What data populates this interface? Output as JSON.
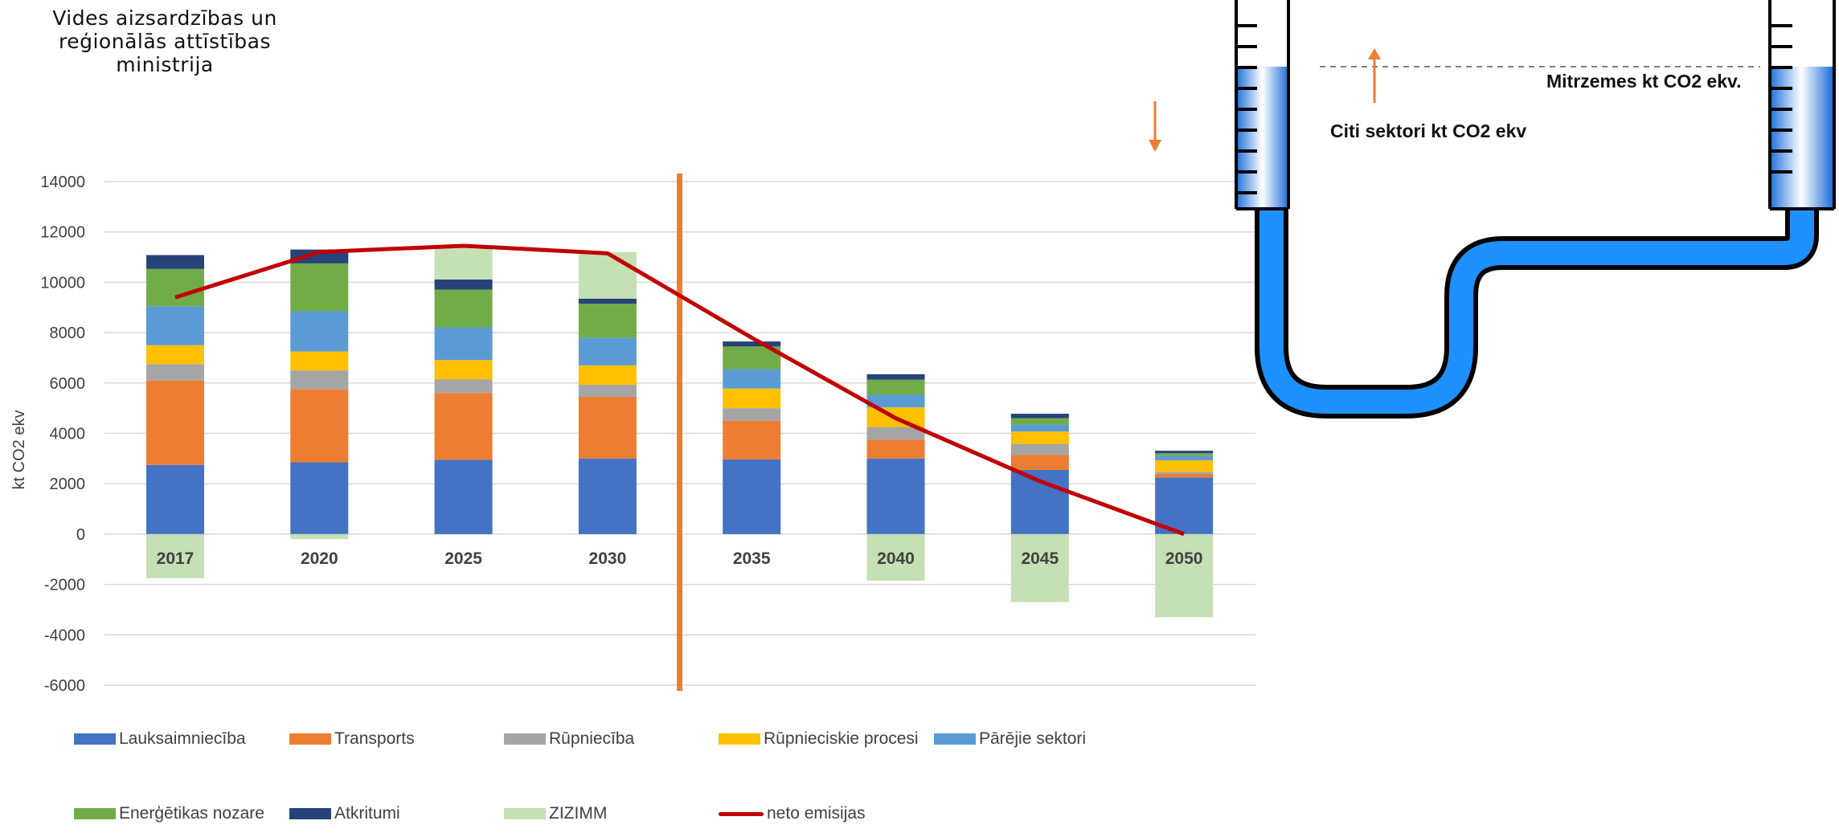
{
  "header": {
    "ministry_lines": [
      "Vides aizsardzības un",
      "reģionālās attīstības",
      "ministrija"
    ]
  },
  "manometer": {
    "left_label": "Citi sektori kt CO2 ekv",
    "right_label": "Mitrzemes kt CO2 ekv.",
    "tube_color": "#1e90ff",
    "arrow_color": "#ed7d31"
  },
  "chart_data": {
    "type": "bar",
    "stacked": true,
    "ylabel": "kt CO2 ekv",
    "ylim": [
      -6000,
      14000
    ],
    "yticks": [
      -6000,
      -4000,
      -2000,
      0,
      2000,
      4000,
      6000,
      8000,
      10000,
      12000,
      14000
    ],
    "grid": true,
    "legend_position": "bottom",
    "categories": [
      "2017",
      "2020",
      "2025",
      "2030",
      "2035",
      "2040",
      "2045",
      "2050"
    ],
    "series": [
      {
        "name": "Lauksaimniecība",
        "color": "#4472c4",
        "values": [
          2750,
          2850,
          2950,
          3000,
          2970,
          3000,
          2550,
          2250
        ]
      },
      {
        "name": "Transports",
        "color": "#ed7d31",
        "values": [
          3350,
          2900,
          2650,
          2450,
          1530,
          750,
          600,
          150
        ]
      },
      {
        "name": "Rūpniecība",
        "color": "#a5a5a5",
        "values": [
          650,
          750,
          550,
          480,
          500,
          500,
          420,
          80
        ]
      },
      {
        "name": "Rūpnieciskie procesi",
        "color": "#ffc000",
        "values": [
          750,
          750,
          760,
          770,
          780,
          780,
          500,
          450
        ]
      },
      {
        "name": "Pārējie sektori",
        "color": "#5b9bd5",
        "values": [
          1550,
          1600,
          1300,
          1100,
          770,
          500,
          280,
          180
        ]
      },
      {
        "name": "Enerģētikas nozare",
        "color": "#70ad47",
        "values": [
          1480,
          1900,
          1500,
          1350,
          900,
          600,
          250,
          100
        ]
      },
      {
        "name": "Atkritumi",
        "color": "#264478",
        "values": [
          550,
          550,
          400,
          200,
          200,
          220,
          180,
          100
        ]
      },
      {
        "name": "ZIZIMM",
        "color": "#c5e0b4",
        "values": [
          -1750,
          -200,
          1300,
          1850,
          0,
          -1850,
          -2700,
          -3300
        ]
      }
    ],
    "line": {
      "name": "neto emisijas",
      "color": "#c00000",
      "values": [
        9400,
        11200,
        11450,
        11150,
        7800,
        4600,
        2100,
        0
      ]
    },
    "vertical_marker_after": "2030",
    "vertical_marker_color": "#ed7d31"
  }
}
